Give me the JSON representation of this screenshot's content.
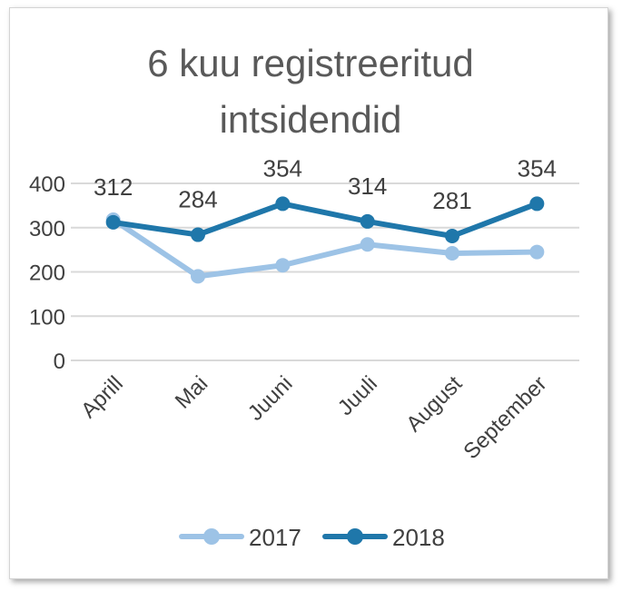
{
  "chart_data": {
    "type": "line",
    "title_lines": [
      "6 kuu registreeritud",
      "intsidendid"
    ],
    "categories": [
      "Aprill",
      "Mai",
      "Juuni",
      "Juuli",
      "August",
      "September"
    ],
    "yticks": [
      "0",
      "100",
      "200",
      "300",
      "400"
    ],
    "ylim": [
      0,
      400
    ],
    "grid": true,
    "legend_position": "bottom",
    "series": [
      {
        "name": "2017",
        "values": [
          318,
          190,
          215,
          262,
          242,
          245
        ],
        "color": "#9dc3e6",
        "show_labels": false
      },
      {
        "name": "2018",
        "values": [
          312,
          284,
          354,
          314,
          281,
          354
        ],
        "color": "#1f77aa",
        "show_labels": true,
        "labels": [
          "312",
          "284",
          "354",
          "314",
          "281",
          "354"
        ]
      }
    ]
  }
}
